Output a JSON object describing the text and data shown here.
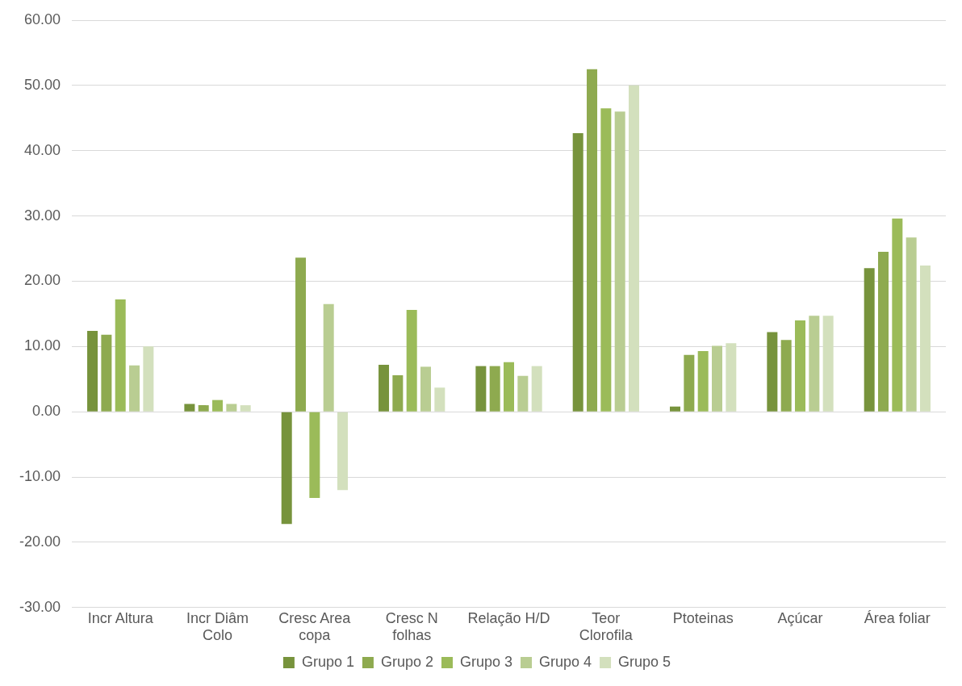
{
  "chart_data": {
    "type": "bar",
    "categories": [
      "Incr Altura",
      "Incr Diâm Colo",
      "Cresc  Area copa",
      "Cresc N folhas",
      "Relação H/D",
      "Teor Clorofila",
      "Ptoteinas",
      "Açúcar",
      "Área foliar"
    ],
    "series": [
      {
        "name": "Grupo 1",
        "color": "#77933c",
        "values": [
          12.4,
          1.2,
          -17.2,
          7.2,
          7.0,
          42.7,
          0.8,
          12.2,
          22.0
        ]
      },
      {
        "name": "Grupo 2",
        "color": "#8eaa4f",
        "values": [
          11.8,
          1.0,
          23.6,
          5.6,
          7.0,
          52.5,
          8.7,
          11.0,
          24.5
        ]
      },
      {
        "name": "Grupo 3",
        "color": "#9bbb59",
        "values": [
          17.2,
          1.8,
          -13.2,
          15.6,
          7.6,
          46.5,
          9.3,
          14.0,
          29.6
        ]
      },
      {
        "name": "Grupo 4",
        "color": "#b9cd92",
        "values": [
          7.1,
          1.2,
          16.5,
          6.9,
          5.5,
          46.0,
          10.1,
          14.7,
          26.7
        ]
      },
      {
        "name": "Grupo 5",
        "color": "#d3e0bd",
        "values": [
          10.0,
          1.0,
          -12.0,
          3.7,
          7.0,
          50.0,
          10.5,
          14.7,
          22.4
        ]
      }
    ],
    "ylim": [
      -30,
      60
    ],
    "yticks": [
      {
        "value": -30,
        "label": "-30.00"
      },
      {
        "value": -20,
        "label": "-20.00"
      },
      {
        "value": -10,
        "label": "-10.00"
      },
      {
        "value": 0,
        "label": "0.00"
      },
      {
        "value": 10,
        "label": "10.00"
      },
      {
        "value": 20,
        "label": "20.00"
      },
      {
        "value": 30,
        "label": "30.00"
      },
      {
        "value": 40,
        "label": "40.00"
      },
      {
        "value": 50,
        "label": "50.00"
      },
      {
        "value": 60,
        "label": "60.00"
      }
    ],
    "grid": "y",
    "legend": "bottom"
  }
}
